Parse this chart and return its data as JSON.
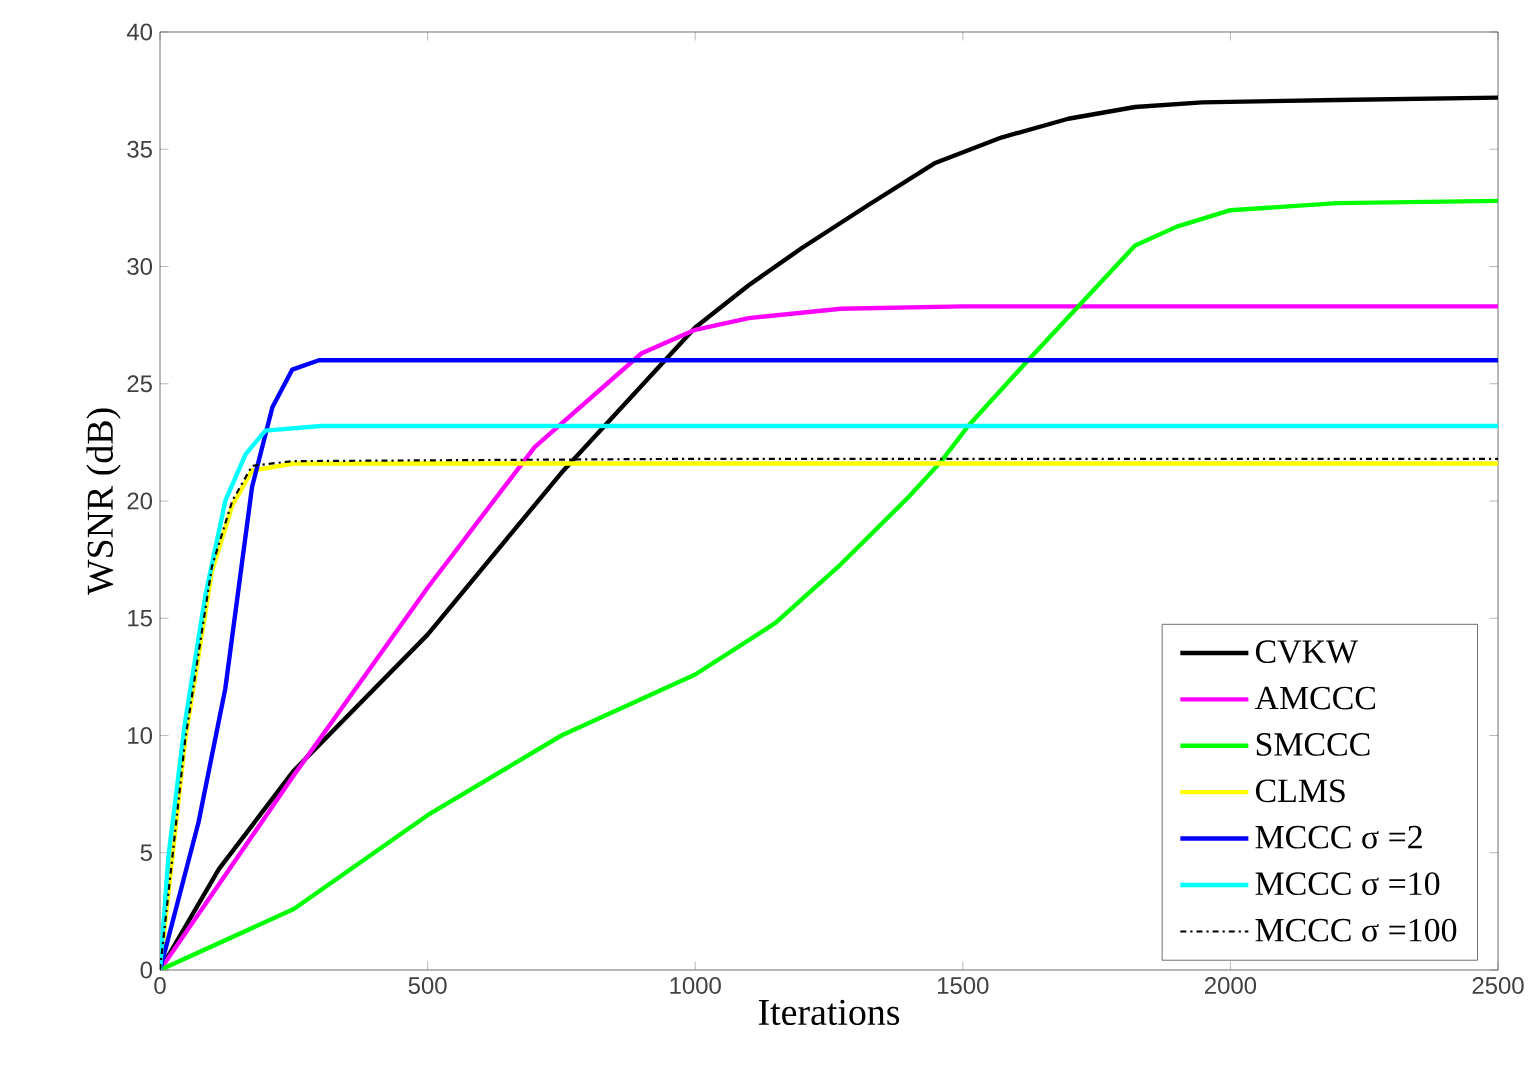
{
  "chart_data": {
    "type": "line",
    "xlabel": "Iterations",
    "ylabel": "WSNR (dB)",
    "xlim": [
      0,
      2500
    ],
    "ylim": [
      0,
      40
    ],
    "xticks": [
      0,
      500,
      1000,
      1500,
      2000,
      2500
    ],
    "yticks": [
      0,
      5,
      10,
      15,
      20,
      25,
      30,
      35,
      40
    ],
    "grid": false,
    "legend": "bottom right",
    "marker": "none",
    "series": [
      {
        "name": "CVKW",
        "color": "#000000",
        "line_style": "solid",
        "x": [
          0,
          110,
          250,
          500,
          750,
          1000,
          1100,
          1200,
          1322,
          1447,
          1572,
          1697,
          1822,
          1947,
          2200,
          2500
        ],
        "values": [
          0,
          4.3,
          8.5,
          14.3,
          21.2,
          27.4,
          29.2,
          30.8,
          32.6,
          34.4,
          35.5,
          36.3,
          36.8,
          37.0,
          37.1,
          37.2
        ]
      },
      {
        "name": "AMCCC",
        "color": "#ff00ff",
        "line_style": "solid",
        "x": [
          0,
          250,
          500,
          700,
          900,
          1000,
          1100,
          1272,
          1500,
          2000,
          2500
        ],
        "values": [
          0,
          8.3,
          16.3,
          22.3,
          26.3,
          27.3,
          27.8,
          28.2,
          28.3,
          28.3,
          28.3
        ]
      },
      {
        "name": "SMCCC",
        "color": "#00ff00",
        "line_style": "solid",
        "x": [
          0,
          250,
          500,
          750,
          1000,
          1150,
          1272,
          1400,
          1460,
          1510,
          1622,
          1716,
          1822,
          1900,
          2000,
          2200,
          2500
        ],
        "values": [
          0,
          2.6,
          6.6,
          10.0,
          12.6,
          14.8,
          17.3,
          20.2,
          21.7,
          23.2,
          26.0,
          28.3,
          30.9,
          31.7,
          32.4,
          32.7,
          32.8
        ]
      },
      {
        "name": "CLMS",
        "color": "#ffff00",
        "line_style": "solid",
        "x": [
          0,
          47,
          97,
          135,
          172,
          250,
          1000,
          2000,
          2500
        ],
        "values": [
          0,
          9.8,
          17.0,
          19.8,
          21.3,
          21.6,
          21.6,
          21.6,
          21.6
        ]
      },
      {
        "name": "MCCC σ =2",
        "color": "#0000ff",
        "line_style": "solid",
        "x": [
          0,
          72,
          122,
          172,
          210,
          247,
          297,
          1000,
          2000,
          2500
        ],
        "values": [
          0,
          6.3,
          12.0,
          20.6,
          24.0,
          25.6,
          26.0,
          26.0,
          26.0,
          26.0
        ]
      },
      {
        "name": "MCCC σ =10",
        "color": "#00ffff",
        "line_style": "solid",
        "x": [
          0,
          16,
          47,
          85,
          122,
          160,
          197,
          300,
          1000,
          2000,
          2500
        ],
        "values": [
          0,
          4.9,
          10.6,
          16.0,
          20.0,
          22.0,
          23.0,
          23.2,
          23.2,
          23.2,
          23.2
        ]
      },
      {
        "name": "MCCC σ =100",
        "color": "#000000",
        "line_style": "dashdot",
        "x": [
          0,
          47,
          97,
          135,
          172,
          247,
          1000,
          2000,
          2500
        ],
        "values": [
          0,
          9.8,
          17.2,
          20.0,
          21.5,
          21.7,
          21.8,
          21.8,
          21.8
        ]
      }
    ]
  }
}
